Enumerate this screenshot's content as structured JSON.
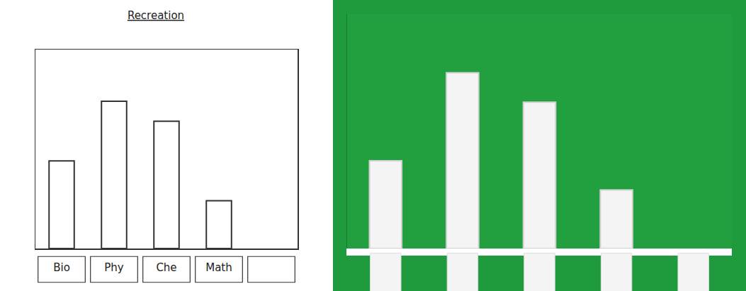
{
  "chart_data": [
    {
      "type": "bar",
      "title": "Recreation",
      "categories": [
        "Bio",
        "Phy",
        "Che",
        "Math",
        null
      ],
      "values": [
        4.4,
        7.4,
        6.4,
        2.4,
        null
      ],
      "color": "#ffffff",
      "ylim": [
        0,
        10
      ],
      "grid": false,
      "tick_labels": "x"
    },
    {
      "type": "bar",
      "categories": [
        null,
        null,
        null,
        null,
        null
      ],
      "values": [
        3,
        6,
        5,
        2,
        null
      ],
      "color": "#f4f4f4",
      "ylim": [
        0,
        8
      ],
      "grid": false,
      "tick_labels": false
    }
  ]
}
